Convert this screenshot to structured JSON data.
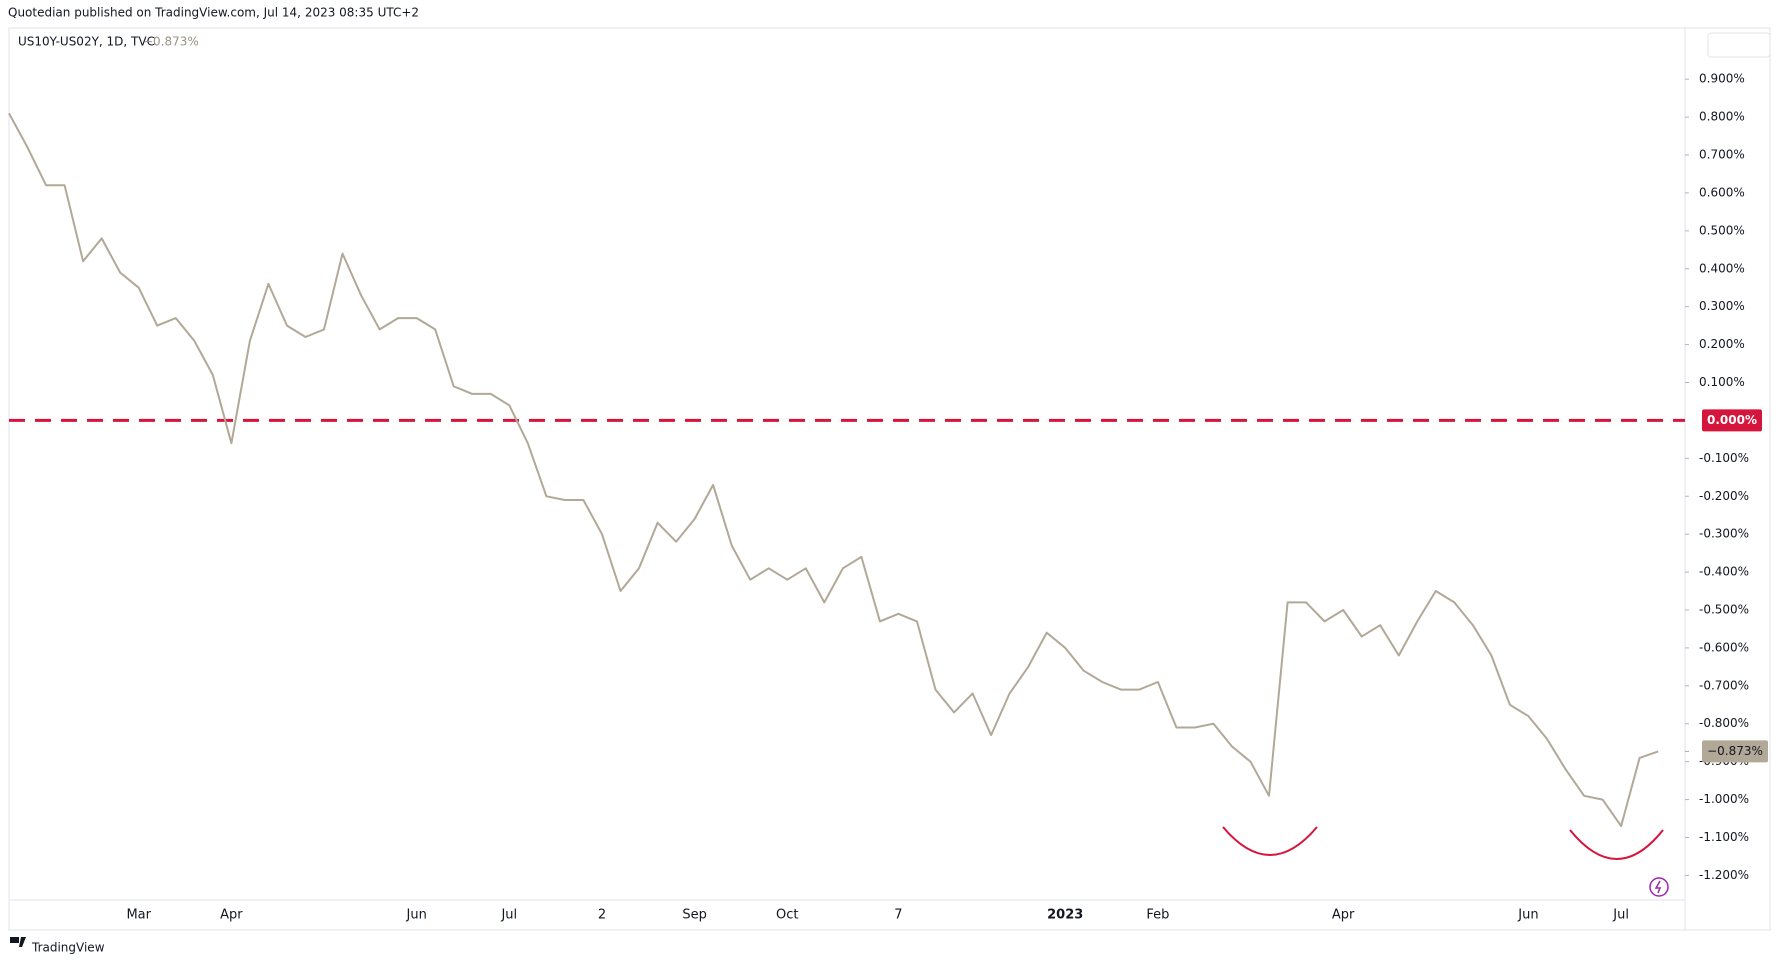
{
  "chart_data": {
    "type": "line",
    "header": "Quotedian published on TradingView.com, Jul 14, 2023 08:35 UTC+2",
    "title": "US10Y-US02Y, 1D, TVC",
    "last_label": "−0.873%",
    "brand": "TradingView",
    "categories": [
      null,
      null,
      null,
      null,
      null,
      null,
      null,
      "Mar",
      null,
      null,
      null,
      null,
      "Apr",
      null,
      null,
      null,
      null,
      null,
      null,
      null,
      null,
      null,
      "Jun",
      null,
      null,
      null,
      null,
      "Jul",
      null,
      null,
      null,
      null,
      "2",
      null,
      null,
      null,
      null,
      "Sep",
      null,
      null,
      null,
      null,
      "Oct",
      null,
      null,
      null,
      null,
      null,
      "7",
      null,
      null,
      null,
      null,
      null,
      null,
      null,
      null,
      "2023",
      null,
      null,
      null,
      null,
      "Feb",
      null,
      null,
      null,
      null,
      null,
      null,
      null,
      null,
      null,
      "Apr",
      null,
      null,
      null,
      null,
      null,
      null,
      null,
      null,
      null,
      "Jun",
      null,
      null,
      null,
      null,
      "Jul",
      null,
      null
    ],
    "series": [
      {
        "name": "US10Y-US02Y",
        "color": "#b2a897",
        "values": [
          0.81,
          0.72,
          0.62,
          0.62,
          0.42,
          0.48,
          0.39,
          0.35,
          0.25,
          0.27,
          0.21,
          0.12,
          -0.06,
          0.21,
          0.36,
          0.25,
          0.22,
          0.24,
          0.44,
          0.33,
          0.24,
          0.27,
          0.27,
          0.24,
          0.09,
          0.07,
          0.07,
          0.04,
          -0.06,
          -0.2,
          -0.21,
          -0.21,
          -0.3,
          -0.45,
          -0.39,
          -0.27,
          -0.32,
          -0.26,
          -0.17,
          -0.33,
          -0.42,
          -0.39,
          -0.42,
          -0.39,
          -0.48,
          -0.39,
          -0.36,
          -0.53,
          -0.51,
          -0.53,
          -0.71,
          -0.77,
          -0.72,
          -0.83,
          -0.72,
          -0.65,
          -0.56,
          -0.6,
          -0.66,
          -0.69,
          -0.71,
          -0.71,
          -0.69,
          -0.81,
          -0.81,
          -0.8,
          -0.86,
          -0.9,
          -0.99,
          -0.48,
          -0.48,
          -0.53,
          -0.5,
          -0.57,
          -0.54,
          -0.62,
          -0.53,
          -0.45,
          -0.48,
          -0.54,
          -0.62,
          -0.75,
          -0.78,
          -0.84,
          -0.92,
          -0.99,
          -1.0,
          -1.07,
          -0.89,
          -0.873
        ]
      }
    ],
    "ylim": [
      -1.344,
      1.035
    ],
    "yticks": [
      {
        "value": 0.9,
        "label": "0.900%"
      },
      {
        "value": 0.8,
        "label": "0.800%"
      },
      {
        "value": 0.7,
        "label": "0.700%"
      },
      {
        "value": 0.6,
        "label": "0.600%"
      },
      {
        "value": 0.5,
        "label": "0.500%"
      },
      {
        "value": 0.4,
        "label": "0.400%"
      },
      {
        "value": 0.3,
        "label": "0.300%"
      },
      {
        "value": 0.2,
        "label": "0.200%"
      },
      {
        "value": 0.1,
        "label": "0.100%"
      },
      {
        "value": -0.1,
        "label": "-0.100%"
      },
      {
        "value": -0.2,
        "label": "-0.200%"
      },
      {
        "value": -0.3,
        "label": "-0.300%"
      },
      {
        "value": -0.4,
        "label": "-0.400%"
      },
      {
        "value": -0.5,
        "label": "-0.500%"
      },
      {
        "value": -0.6,
        "label": "-0.600%"
      },
      {
        "value": -0.7,
        "label": "-0.700%"
      },
      {
        "value": -0.8,
        "label": "-0.800%"
      },
      {
        "value": -0.9,
        "label": "-0.900%"
      },
      {
        "value": -1.0,
        "label": "-1.000%"
      },
      {
        "value": -1.1,
        "label": "-1.100%"
      },
      {
        "value": -1.2,
        "label": "-1.200%"
      }
    ],
    "reference_line": {
      "value": 0,
      "label": "0.000%",
      "color": "#d6153d"
    }
  }
}
